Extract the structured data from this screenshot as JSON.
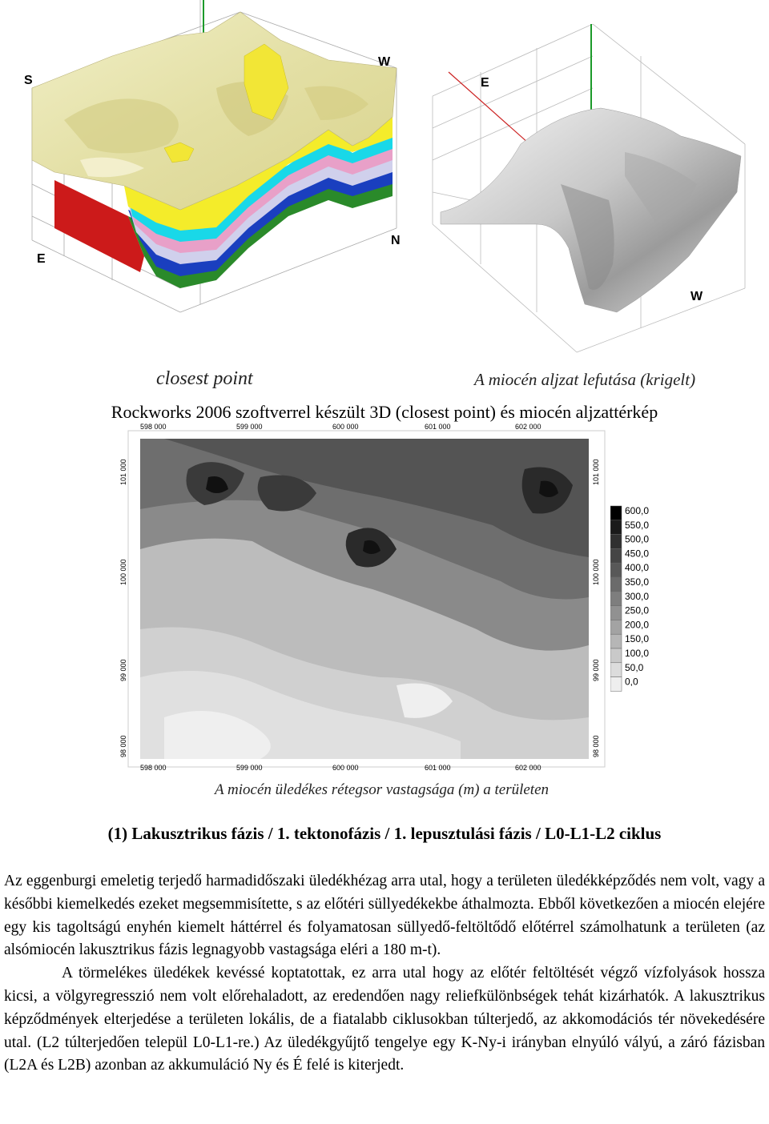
{
  "figure_3d": {
    "left_caption": "closest point",
    "right_caption": "A miocén aljzat lefutása (krigelt)",
    "caption": "Rockworks 2006 szoftverrel készült 3D (closest point) és miocén aljzattérkép",
    "left_compass": {
      "s": "S",
      "w": "W",
      "e": "E",
      "n": "N"
    },
    "right_compass": {
      "e": "E",
      "w": "W"
    }
  },
  "thickness_map": {
    "x_ticks": [
      "598 000",
      "599 000",
      "600 000",
      "601 000",
      "602 000"
    ],
    "y_ticks": [
      "101 000",
      "100 000",
      "99 000",
      "98 000"
    ],
    "caption": "A miocén üledékes rétegsor vastagsága (m) a területen",
    "legend": [
      "600,0",
      "550,0",
      "500,0",
      "450,0",
      "400,0",
      "350,0",
      "300,0",
      "250,0",
      "200,0",
      "150,0",
      "100,0",
      "50,0",
      "0,0"
    ],
    "legend_colors": [
      "#000000",
      "#1a1a1a",
      "#303030",
      "#454545",
      "#585858",
      "#6b6b6b",
      "#7e7e7e",
      "#919191",
      "#a3a3a3",
      "#b6b6b6",
      "#c9c9c9",
      "#dcdcdc",
      "#eeeeee"
    ]
  },
  "heading": "(1) Lakusztrikus fázis / 1. tektonofázis / 1. lepusztulási fázis / L0-L1-L2 ciklus",
  "paragraphs": [
    "Az eggenburgi emeletig terjedő harmadidőszaki üledékhézag arra utal, hogy a területen üledékképződés nem volt, vagy a későbbi kiemelkedés ezeket megsemmisítette, s az előtéri süllyedékekbe áthalmozta. Ebből következően a miocén elejére egy kis tagoltságú enyhén kiemelt háttérrel és folyamatosan süllyedő-feltöltődő előtérrel számolhatunk a területen (az alsómiocén lakusztrikus fázis legnagyobb vastagsága eléri a 180 m-t).",
    "A törmelékes üledékek kevéssé koptatottak, ez arra utal hogy az előtér feltöltését végző vízfolyások hossza kicsi, a völgyregresszió nem volt előrehaladott, az eredendően nagy reliefkülönbségek tehát kizárhatók. A lakusztrikus képződmények elterjedése a területen lokális, de a fiatalabb ciklusokban túlterjedő, az akkomodációs tér növekedésére utal. (L2 túlterjedően települ L0-L1-re.) Az üledékgyűjtő tengelye egy K-Ny-i irányban elnyúló vályú, a záró fázisban (L2A és L2B) azonban az akkumuláció Ny és É felé is kiterjedt."
  ]
}
